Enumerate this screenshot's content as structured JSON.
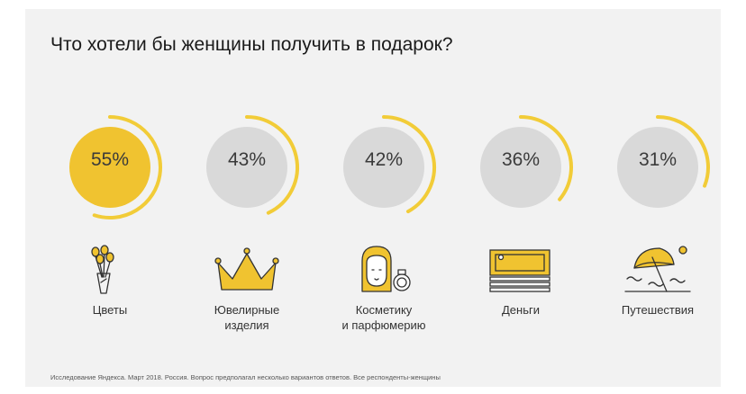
{
  "title": "Что хотели бы женщины получить в подарок?",
  "colors": {
    "accent": "#f0c330",
    "circle": "#d9d9d9",
    "arc": "#f2cc38",
    "icon": "#333333"
  },
  "chart_data": {
    "type": "pie",
    "title": "Что хотели бы женщины получить в подарок?",
    "unit": "%",
    "categories": [
      "Цветы",
      "Ювелирные изделия",
      "Косметику и парфюмерию",
      "Деньги",
      "Путешествия"
    ],
    "values": [
      55,
      43,
      42,
      36,
      31
    ]
  },
  "items": [
    {
      "value_label": "55%",
      "value": 55,
      "icon": "flowers-icon",
      "label_lines": [
        "Цветы"
      ],
      "highlight": true
    },
    {
      "value_label": "43%",
      "value": 43,
      "icon": "crown-icon",
      "label_lines": [
        "Ювелирные",
        "изделия"
      ],
      "highlight": false
    },
    {
      "value_label": "42%",
      "value": 42,
      "icon": "woman-perfume-icon",
      "label_lines": [
        "Косметику",
        "и парфюмерию"
      ],
      "highlight": false
    },
    {
      "value_label": "36%",
      "value": 36,
      "icon": "money-icon",
      "label_lines": [
        "Деньги"
      ],
      "highlight": false
    },
    {
      "value_label": "31%",
      "value": 31,
      "icon": "beach-umbrella-icon",
      "label_lines": [
        "Путешествия"
      ],
      "highlight": false
    }
  ],
  "footnote": "Исследование Яндекса. Март 2018. Россия. Вопрос предполагал несколько вариантов ответов. Все респонденты-женщины"
}
